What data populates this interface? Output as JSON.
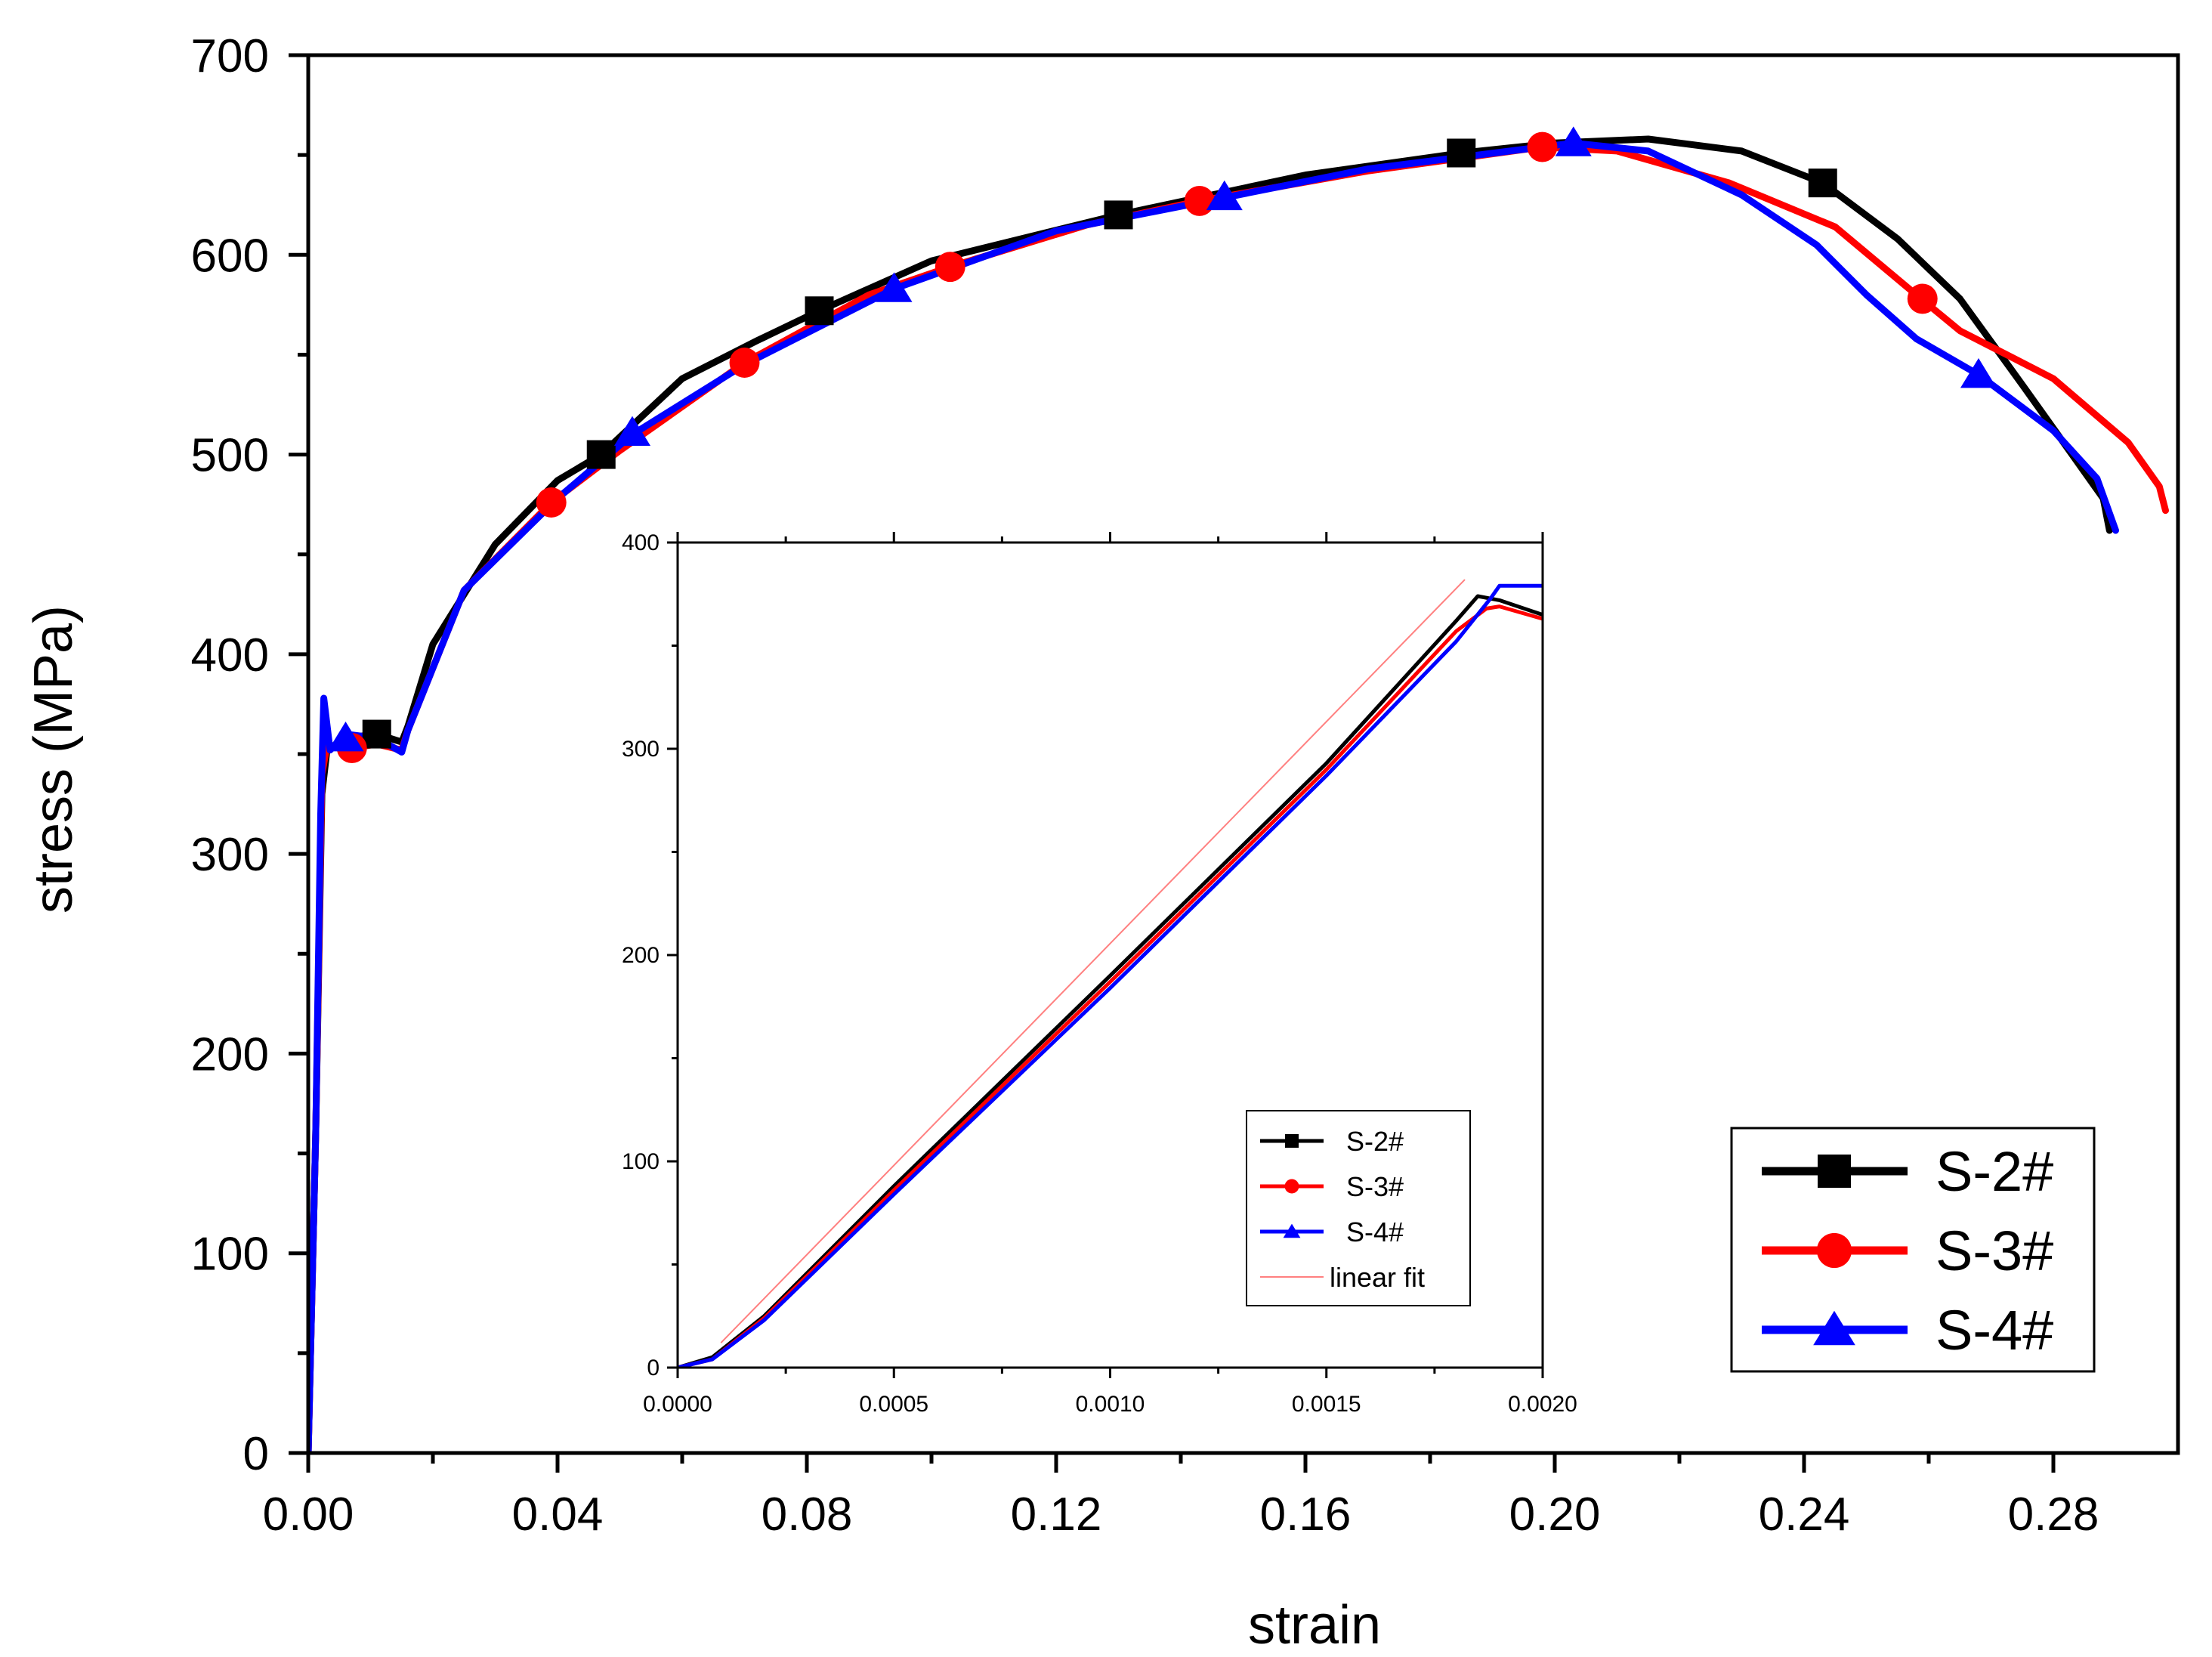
{
  "chart_data": [
    {
      "id": "main",
      "type": "line",
      "title": "",
      "xlabel": "strain",
      "ylabel": "stress (MPa)",
      "xlim": [
        0,
        0.3
      ],
      "ylim": [
        0,
        700
      ],
      "x_ticks": [
        0.0,
        0.04,
        0.08,
        0.12,
        0.16,
        0.2,
        0.24,
        0.28
      ],
      "x_tick_labels": [
        "0.00",
        "0.04",
        "0.08",
        "0.12",
        "0.16",
        "0.20",
        "0.24",
        "0.28"
      ],
      "y_ticks": [
        0,
        100,
        200,
        300,
        400,
        500,
        600,
        700
      ],
      "y_tick_labels": [
        "0",
        "100",
        "200",
        "300",
        "400",
        "500",
        "600",
        "700"
      ],
      "legend_position": "bottom-right",
      "series": [
        {
          "name": "S-2#",
          "color": "#000000",
          "marker": "square",
          "points": [
            [
              0,
              0
            ],
            [
              0.0012,
              160
            ],
            [
              0.0022,
              330
            ],
            [
              0.003,
              352
            ],
            [
              0.006,
              358
            ],
            [
              0.011,
              360
            ],
            [
              0.015,
              356
            ],
            [
              0.016,
              364
            ],
            [
              0.02,
              405
            ],
            [
              0.03,
              455
            ],
            [
              0.04,
              487
            ],
            [
              0.047,
              500
            ],
            [
              0.06,
              538
            ],
            [
              0.072,
              557
            ],
            [
              0.082,
              572
            ],
            [
              0.1,
              597
            ],
            [
              0.13,
              620
            ],
            [
              0.16,
              640
            ],
            [
              0.185,
              651
            ],
            [
              0.2,
              656
            ],
            [
              0.215,
              658
            ],
            [
              0.23,
              652
            ],
            [
              0.243,
              636
            ],
            [
              0.255,
              608
            ],
            [
              0.265,
              578
            ],
            [
              0.275,
              535
            ],
            [
              0.283,
              500
            ],
            [
              0.288,
              478
            ],
            [
              0.289,
              462
            ]
          ],
          "markers": [
            [
              0.011,
              360
            ],
            [
              0.047,
              500
            ],
            [
              0.082,
              572
            ],
            [
              0.13,
              620
            ],
            [
              0.185,
              651
            ],
            [
              0.243,
              636
            ]
          ]
        },
        {
          "name": "S-3#",
          "color": "#ff0000",
          "marker": "circle",
          "points": [
            [
              0,
              0
            ],
            [
              0.0012,
              160
            ],
            [
              0.0022,
              340
            ],
            [
              0.003,
              354
            ],
            [
              0.007,
              353
            ],
            [
              0.011,
              355
            ],
            [
              0.015,
              352
            ],
            [
              0.016,
              362
            ],
            [
              0.025,
              432
            ],
            [
              0.039,
              476
            ],
            [
              0.05,
              502
            ],
            [
              0.07,
              546
            ],
            [
              0.09,
              580
            ],
            [
              0.103,
              594
            ],
            [
              0.125,
              615
            ],
            [
              0.143,
              627
            ],
            [
              0.17,
              642
            ],
            [
              0.198,
              654
            ],
            [
              0.21,
              652
            ],
            [
              0.228,
              636
            ],
            [
              0.245,
              614
            ],
            [
              0.258,
              580
            ],
            [
              0.265,
              562
            ],
            [
              0.28,
              538
            ],
            [
              0.292,
              506
            ],
            [
              0.297,
              484
            ],
            [
              0.298,
              472
            ]
          ],
          "markers": [
            [
              0.007,
              353
            ],
            [
              0.039,
              476
            ],
            [
              0.07,
              546
            ],
            [
              0.103,
              594
            ],
            [
              0.143,
              627
            ],
            [
              0.198,
              654
            ],
            [
              0.259,
              578
            ]
          ]
        },
        {
          "name": "S-4#",
          "color": "#0000ff",
          "marker": "triangle",
          "points": [
            [
              0,
              0
            ],
            [
              0.0012,
              160
            ],
            [
              0.002,
              320
            ],
            [
              0.0025,
              378
            ],
            [
              0.0035,
              352
            ],
            [
              0.006,
              360
            ],
            [
              0.011,
              358
            ],
            [
              0.015,
              351
            ],
            [
              0.016,
              362
            ],
            [
              0.025,
              432
            ],
            [
              0.04,
              478
            ],
            [
              0.052,
              510
            ],
            [
              0.07,
              545
            ],
            [
              0.094,
              583
            ],
            [
              0.12,
              612
            ],
            [
              0.146,
              628
            ],
            [
              0.17,
              643
            ],
            [
              0.203,
              656
            ],
            [
              0.215,
              652
            ],
            [
              0.23,
              630
            ],
            [
              0.242,
              605
            ],
            [
              0.25,
              580
            ],
            [
              0.258,
              558
            ],
            [
              0.268,
              540
            ],
            [
              0.28,
              512
            ],
            [
              0.287,
              488
            ],
            [
              0.29,
              462
            ]
          ],
          "markers": [
            [
              0.006,
              358
            ],
            [
              0.052,
              511
            ],
            [
              0.094,
              583
            ],
            [
              0.147,
              629
            ],
            [
              0.203,
              656
            ],
            [
              0.268,
              540
            ]
          ]
        }
      ]
    },
    {
      "id": "inset",
      "type": "line",
      "title": "",
      "xlabel": "",
      "ylabel": "",
      "xlim": [
        0,
        0.002
      ],
      "ylim": [
        0,
        400
      ],
      "x_ticks": [
        0.0,
        0.0005,
        0.001,
        0.0015,
        0.002
      ],
      "x_tick_labels": [
        "0.0000",
        "0.0005",
        "0.0010",
        "0.0015",
        "0.0020"
      ],
      "y_ticks": [
        0,
        100,
        200,
        300,
        400
      ],
      "y_tick_labels": [
        "0",
        "100",
        "200",
        "300",
        "400"
      ],
      "legend_position": "bottom-right",
      "series": [
        {
          "name": "S-2#",
          "color": "#000000",
          "marker": "square",
          "points": [
            [
              0,
              0
            ],
            [
              8e-05,
              5
            ],
            [
              0.0002,
              25
            ],
            [
              0.0005,
              88
            ],
            [
              0.001,
              190
            ],
            [
              0.0015,
              293
            ],
            [
              0.0018,
              362
            ],
            [
              0.00185,
              374
            ],
            [
              0.0019,
              372
            ],
            [
              0.002,
              365
            ]
          ]
        },
        {
          "name": "S-3#",
          "color": "#ff0000",
          "marker": "circle",
          "points": [
            [
              0,
              0
            ],
            [
              8e-05,
              4
            ],
            [
              0.0002,
              24
            ],
            [
              0.0005,
              86
            ],
            [
              0.001,
              187
            ],
            [
              0.0015,
              290
            ],
            [
              0.0018,
              357
            ],
            [
              0.00187,
              368
            ],
            [
              0.0019,
              369
            ],
            [
              0.002,
              363
            ]
          ]
        },
        {
          "name": "S-4#",
          "color": "#0000ff",
          "marker": "triangle",
          "points": [
            [
              0,
              0
            ],
            [
              8e-05,
              4
            ],
            [
              0.0002,
              23
            ],
            [
              0.0005,
              84
            ],
            [
              0.001,
              184
            ],
            [
              0.0015,
              287
            ],
            [
              0.0018,
              352
            ],
            [
              0.00188,
              373
            ],
            [
              0.0019,
              379
            ],
            [
              0.002,
              379
            ]
          ]
        },
        {
          "name": "linear fit",
          "color": "#ff8080",
          "marker": "none",
          "points": [
            [
              0.0001,
              12
            ],
            [
              0.00182,
              382
            ]
          ]
        }
      ]
    }
  ]
}
